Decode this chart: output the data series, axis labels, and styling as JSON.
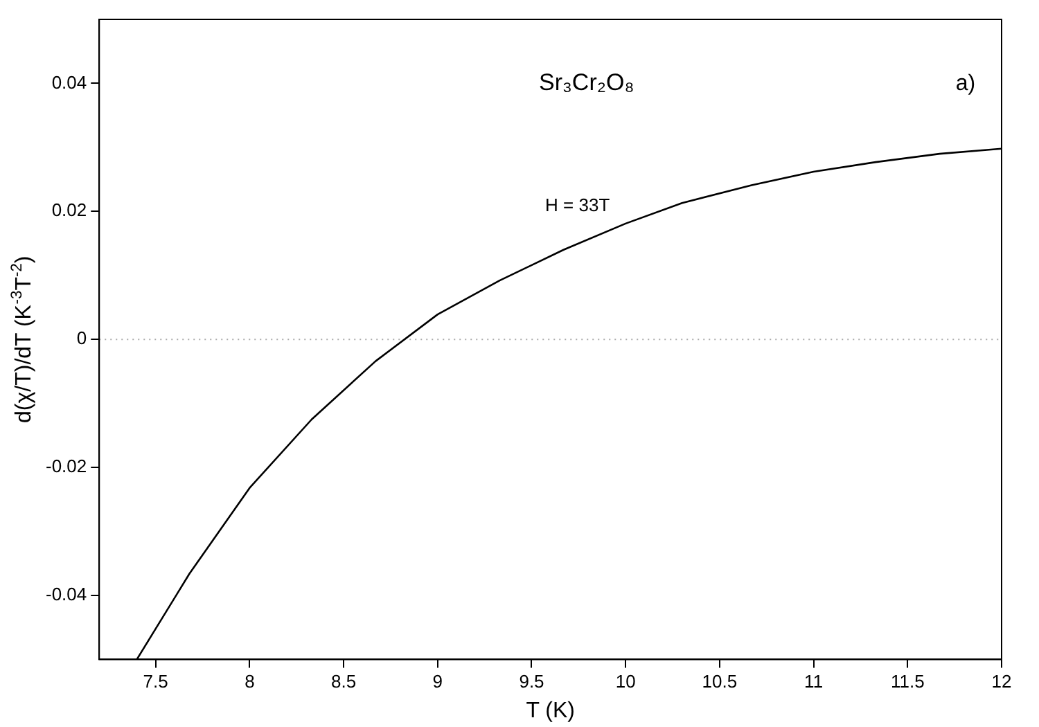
{
  "chart_data": {
    "type": "line",
    "xlabel": "T (K)",
    "ylabel": "d(χ/T)/dT (K$^{-3}$T$^{-2}$)",
    "annotations": [
      "Sr₃Cr₂O₈",
      "a)",
      "H = 33T"
    ],
    "series": [
      {
        "color": "#000000",
        "x": [
          7.4,
          7.68,
          8.0,
          8.33,
          8.67,
          9.0,
          9.33,
          9.67,
          10.0,
          10.3,
          10.67,
          11.0,
          11.33,
          11.67,
          12.0
        ],
        "values": [
          -0.05,
          -0.0366,
          -0.0232,
          -0.0125,
          -0.0034,
          0.0039,
          0.0092,
          0.014,
          0.0181,
          0.0213,
          0.0241,
          0.0262,
          0.0277,
          0.029,
          0.0298
        ]
      }
    ],
    "xlim": [
      7.2,
      12
    ],
    "xticks": [
      7.5,
      8,
      8.5,
      9,
      9.5,
      10,
      10.5,
      11,
      11.5,
      12
    ],
    "ylim": [
      -0.05,
      0.05
    ],
    "yticks": [
      -0.04,
      -0.02,
      0,
      0.02,
      0.04
    ],
    "ref_lines": [
      {
        "axis": "y",
        "value": 0,
        "color": "#aaaaaa",
        "line_style": "dotted"
      }
    ],
    "grid": false,
    "legend": false,
    "marker": "none",
    "line_style": "solid"
  }
}
